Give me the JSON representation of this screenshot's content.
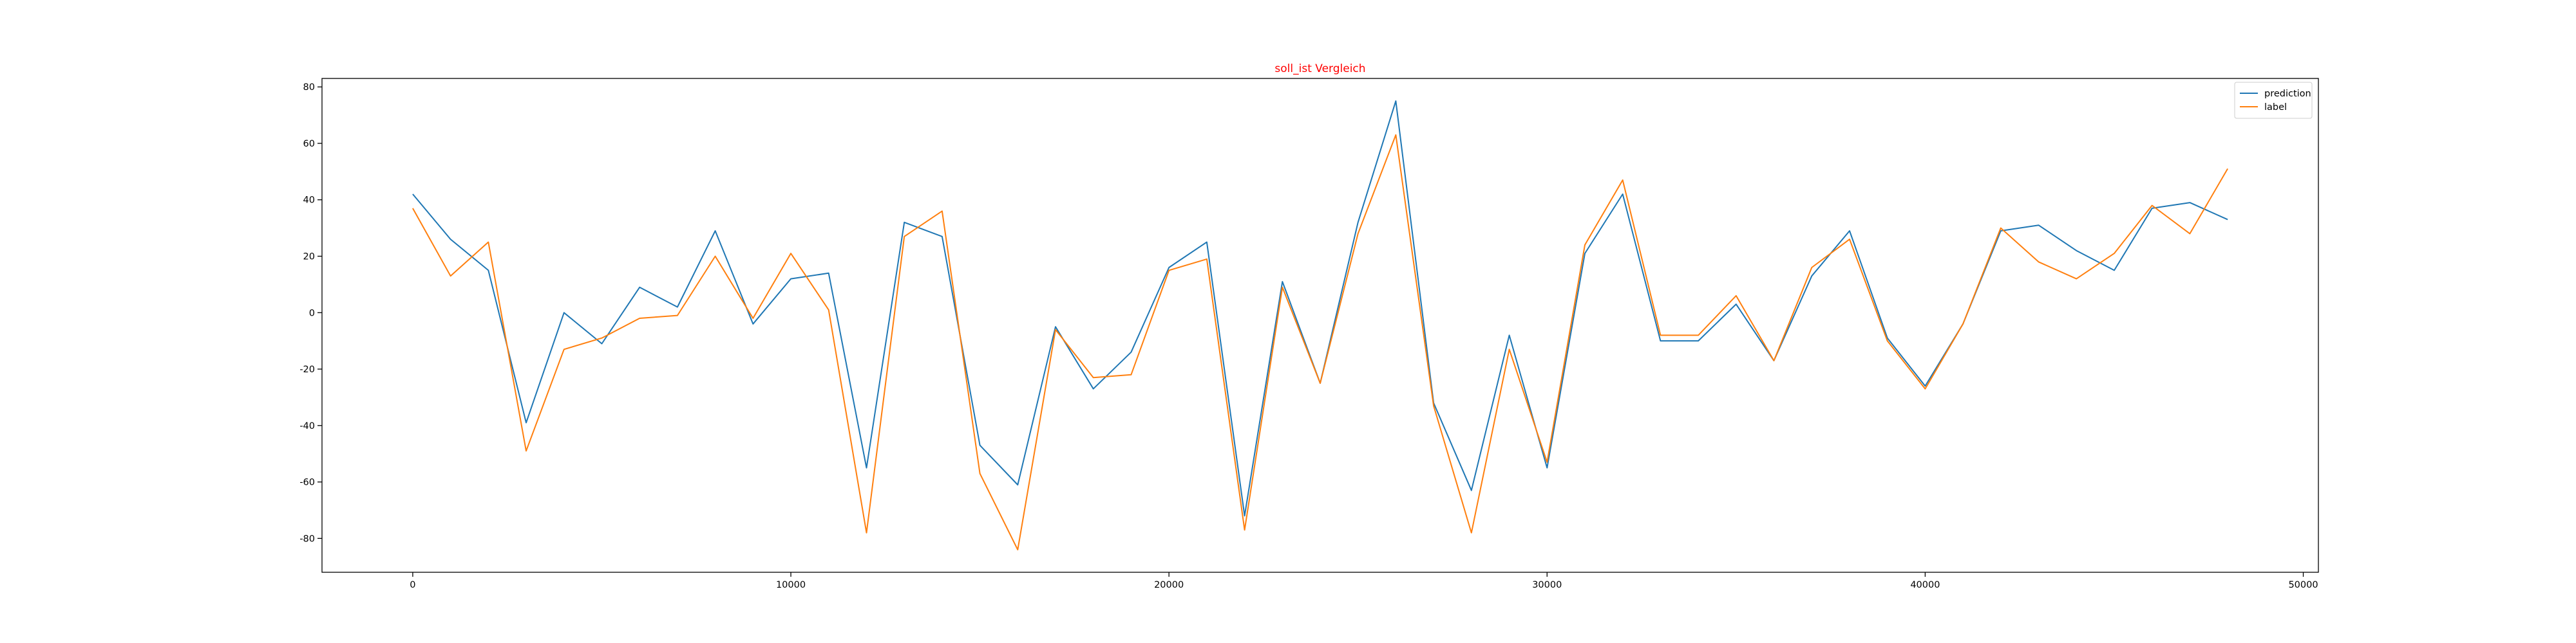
{
  "chart_data": {
    "type": "line",
    "title": "soll_ist Vergleich",
    "title_color": "#ff0000",
    "xlabel": "",
    "ylabel": "",
    "xlim": [
      -2400,
      50400
    ],
    "ylim": [
      -92,
      83
    ],
    "x_ticks": [
      0,
      10000,
      20000,
      30000,
      40000,
      50000
    ],
    "y_ticks": [
      80,
      60,
      40,
      20,
      0,
      -20,
      -40,
      -60,
      -80
    ],
    "grid": false,
    "legend_position": "top-right",
    "x": [
      0,
      1000,
      2000,
      3000,
      4000,
      5000,
      6000,
      7000,
      8000,
      9000,
      10000,
      11000,
      12000,
      13000,
      14000,
      15000,
      16000,
      17000,
      18000,
      19000,
      20000,
      21000,
      22000,
      23000,
      24000,
      25000,
      26000,
      27000,
      28000,
      29000,
      30000,
      31000,
      32000,
      33000,
      34000,
      35000,
      36000,
      37000,
      38000,
      39000,
      40000,
      41000,
      42000,
      43000,
      44000,
      45000,
      46000,
      47000,
      48000
    ],
    "series": [
      {
        "name": "prediction",
        "color": "#1f77b4",
        "values": [
          42,
          26,
          15,
          -39,
          0,
          -11,
          9,
          2,
          29,
          -4,
          12,
          14,
          -55,
          32,
          27,
          -47,
          -61,
          -5,
          -27,
          -14,
          16,
          25,
          -72,
          11,
          -25,
          32,
          75,
          -32,
          -63,
          -8,
          -55,
          21,
          42,
          -10,
          -10,
          3,
          -17,
          13,
          29,
          -9,
          -26,
          -4,
          29,
          31,
          22,
          15,
          37,
          39,
          33
        ]
      },
      {
        "name": "label",
        "color": "#ff7f0e",
        "values": [
          37,
          13,
          25,
          -49,
          -13,
          -9,
          -2,
          -1,
          20,
          -2,
          21,
          1,
          -78,
          27,
          36,
          -57,
          -84,
          -6,
          -23,
          -22,
          15,
          19,
          -77,
          9,
          -25,
          28,
          63,
          -33,
          -78,
          -13,
          -53,
          24,
          47,
          -8,
          -8,
          6,
          -17,
          16,
          26,
          -10,
          -27,
          -4,
          30,
          18,
          12,
          21,
          38,
          28,
          51
        ]
      }
    ]
  }
}
